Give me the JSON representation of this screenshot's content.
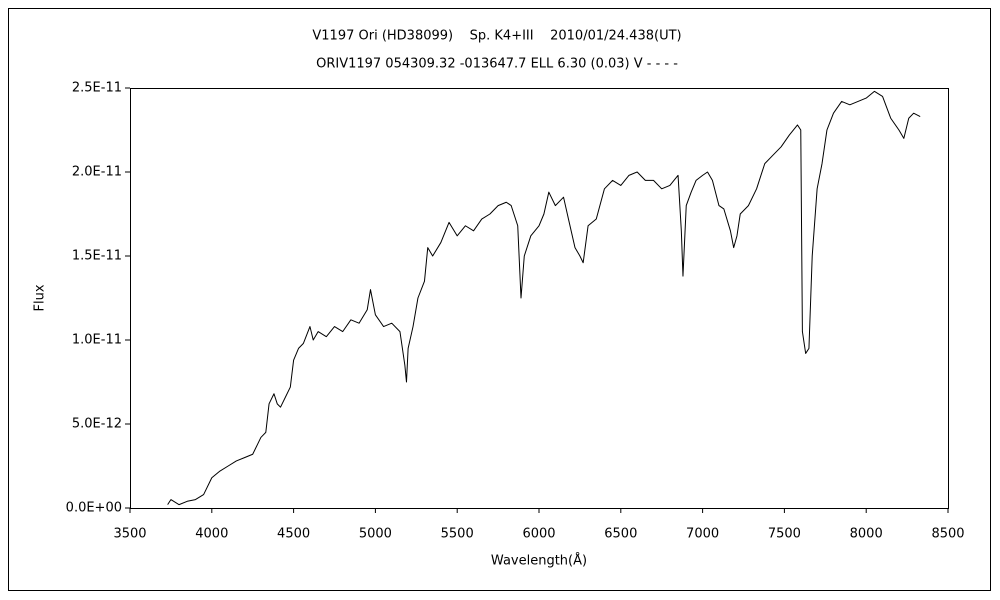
{
  "chart_data": {
    "type": "line",
    "title": "V1197 Ori (HD38099)    Sp. K4+III    2010/01/24.438(UT)",
    "subtitle": "ORIV1197 054309.32 -013647.7 ELL 6.30 (0.03) V - - - -",
    "x_label": "Wavelength(Å)",
    "y_label": "Flux",
    "xlim": [
      3500,
      8500
    ],
    "xticks": [
      3500,
      4000,
      4500,
      5000,
      5500,
      6000,
      6500,
      7000,
      7500,
      8000,
      8500
    ],
    "ylim": [
      0,
      2.5e-11
    ],
    "yticks": [
      {
        "value": 0,
        "label": "0.0E+00"
      },
      {
        "value": 5e-12,
        "label": "5.0E-12"
      },
      {
        "value": 1e-11,
        "label": "1.0E-11"
      },
      {
        "value": 1.5e-11,
        "label": "1.5E-11"
      },
      {
        "value": 2e-11,
        "label": "2.0E-11"
      },
      {
        "value": 2.5e-11,
        "label": "2.5E-11"
      }
    ],
    "grid": false,
    "series": [
      {
        "color": "#000000",
        "x": [
          3730,
          3750,
          3800,
          3850,
          3900,
          3950,
          4000,
          4050,
          4100,
          4150,
          4200,
          4250,
          4280,
          4300,
          4330,
          4350,
          4380,
          4400,
          4420,
          4450,
          4480,
          4500,
          4530,
          4560,
          4600,
          4620,
          4650,
          4700,
          4750,
          4800,
          4850,
          4900,
          4950,
          4970,
          5000,
          5050,
          5100,
          5150,
          5180,
          5190,
          5200,
          5230,
          5260,
          5300,
          5320,
          5350,
          5400,
          5450,
          5500,
          5550,
          5600,
          5650,
          5700,
          5750,
          5800,
          5830,
          5870,
          5890,
          5910,
          5950,
          6000,
          6030,
          6060,
          6100,
          6150,
          6180,
          6220,
          6250,
          6270,
          6300,
          6350,
          6400,
          6450,
          6500,
          6550,
          6600,
          6650,
          6700,
          6750,
          6800,
          6850,
          6870,
          6880,
          6900,
          6930,
          6960,
          7000,
          7030,
          7060,
          7100,
          7130,
          7170,
          7190,
          7210,
          7230,
          7280,
          7330,
          7380,
          7430,
          7480,
          7530,
          7580,
          7600,
          7610,
          7630,
          7650,
          7670,
          7700,
          7730,
          7760,
          7800,
          7850,
          7900,
          7950,
          8000,
          8050,
          8100,
          8150,
          8200,
          8230,
          8260,
          8290,
          8330
        ],
        "values": [
          2e-13,
          5e-13,
          2e-13,
          4e-13,
          5e-13,
          8e-13,
          1.8e-12,
          2.2e-12,
          2.5e-12,
          2.8e-12,
          3e-12,
          3.2e-12,
          3.8e-12,
          4.2e-12,
          4.5e-12,
          6.2e-12,
          6.8e-12,
          6.2e-12,
          6e-12,
          6.6e-12,
          7.2e-12,
          8.8e-12,
          9.5e-12,
          9.8e-12,
          1.08e-11,
          1e-11,
          1.05e-11,
          1.02e-11,
          1.08e-11,
          1.05e-11,
          1.12e-11,
          1.1e-11,
          1.18e-11,
          1.3e-11,
          1.15e-11,
          1.08e-11,
          1.1e-11,
          1.05e-11,
          8.5e-12,
          7.5e-12,
          9.5e-12,
          1.08e-11,
          1.25e-11,
          1.35e-11,
          1.55e-11,
          1.5e-11,
          1.58e-11,
          1.7e-11,
          1.62e-11,
          1.68e-11,
          1.65e-11,
          1.72e-11,
          1.75e-11,
          1.8e-11,
          1.82e-11,
          1.8e-11,
          1.68e-11,
          1.25e-11,
          1.5e-11,
          1.62e-11,
          1.68e-11,
          1.75e-11,
          1.88e-11,
          1.8e-11,
          1.85e-11,
          1.72e-11,
          1.55e-11,
          1.5e-11,
          1.46e-11,
          1.68e-11,
          1.72e-11,
          1.9e-11,
          1.95e-11,
          1.92e-11,
          1.98e-11,
          2e-11,
          1.95e-11,
          1.95e-11,
          1.9e-11,
          1.92e-11,
          1.98e-11,
          1.65e-11,
          1.38e-11,
          1.8e-11,
          1.88e-11,
          1.95e-11,
          1.98e-11,
          2e-11,
          1.95e-11,
          1.8e-11,
          1.78e-11,
          1.65e-11,
          1.55e-11,
          1.62e-11,
          1.75e-11,
          1.8e-11,
          1.9e-11,
          2.05e-11,
          2.1e-11,
          2.15e-11,
          2.22e-11,
          2.28e-11,
          2.25e-11,
          1.05e-11,
          9.2e-12,
          9.5e-12,
          1.5e-11,
          1.9e-11,
          2.05e-11,
          2.25e-11,
          2.35e-11,
          2.42e-11,
          2.4e-11,
          2.42e-11,
          2.44e-11,
          2.48e-11,
          2.45e-11,
          2.32e-11,
          2.25e-11,
          2.2e-11,
          2.32e-11,
          2.35e-11,
          2.33e-11
        ]
      }
    ]
  }
}
